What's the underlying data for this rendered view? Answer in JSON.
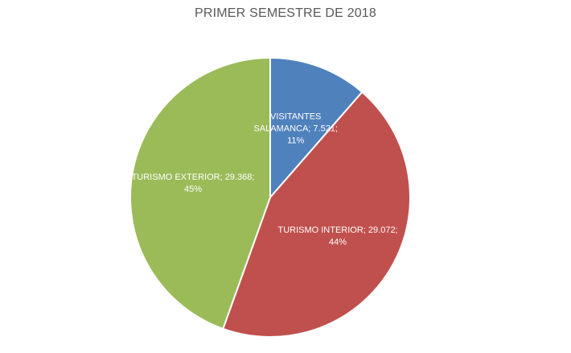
{
  "chart_data": {
    "type": "pie",
    "title": "PRIMER SEMESTRE DE 2018",
    "slices": [
      {
        "name": "VISITANTES SALAMANCA",
        "value": 7521,
        "value_label": "7.521",
        "percent_label": "11%",
        "color": "#4F81BD",
        "label_lines": [
          "VISITANTES",
          "SALAMANCA; 7.521;",
          "11%"
        ]
      },
      {
        "name": "TURISMO INTERIOR",
        "value": 29072,
        "value_label": "29.072",
        "percent_label": "44%",
        "color": "#C0504D",
        "label_lines": [
          "TURISMO INTERIOR; 29.072;",
          "44%"
        ]
      },
      {
        "name": "TURISMO EXTERIOR",
        "value": 29368,
        "value_label": "29.368",
        "percent_label": "45%",
        "color": "#9BBB59",
        "label_lines": [
          "TURISMO EXTERIOR; 29.368;",
          "45%"
        ]
      }
    ]
  }
}
